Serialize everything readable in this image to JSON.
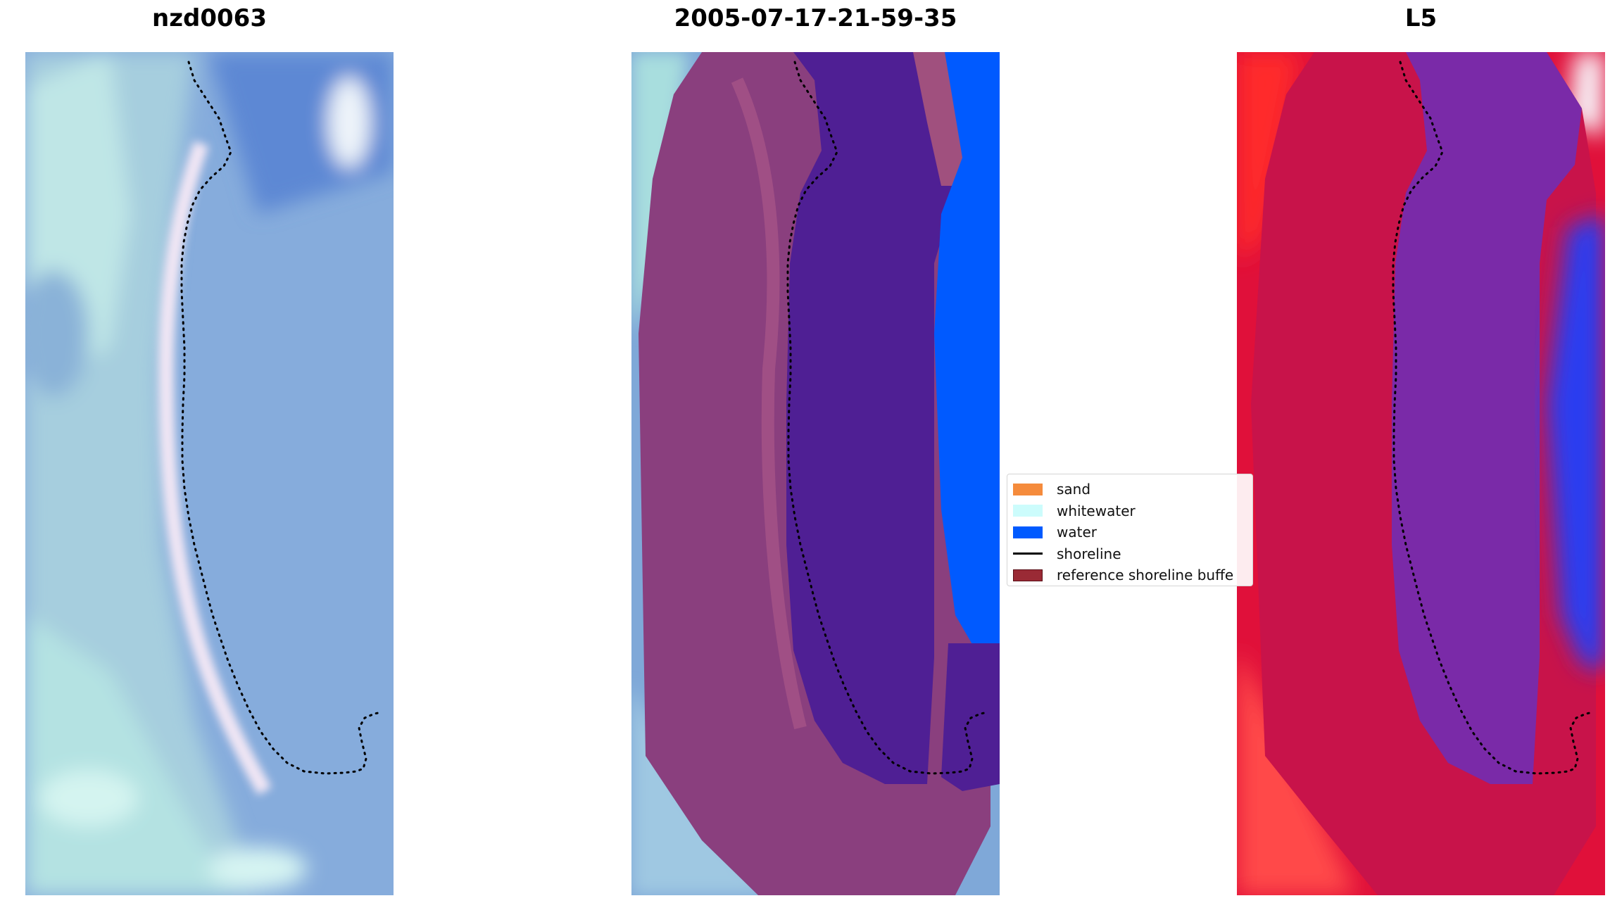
{
  "panels": [
    {
      "title": "nzd0063"
    },
    {
      "title": "2005-07-17-21-59-35"
    },
    {
      "title": "L5"
    }
  ],
  "legend": {
    "items": [
      {
        "label": "sand",
        "color": "#f58b3c",
        "kind": "patch"
      },
      {
        "label": "whitewater",
        "color": "#ccfcfc",
        "kind": "patch"
      },
      {
        "label": "water",
        "color": "#005aff",
        "kind": "patch"
      },
      {
        "label": "shoreline",
        "color": "#000000",
        "kind": "line"
      },
      {
        "label": "reference shoreline buffe",
        "color": "#9a2a35",
        "kind": "patch"
      }
    ]
  },
  "colors": {
    "sky_blue": "#7aa6dc",
    "pale_cyan": "#c4eeee",
    "buffer_purple": "#8a3f7e",
    "inner_indigo": "#4f1f94",
    "water_blue": "#005aff",
    "index_red": "#e0103a",
    "index_blue": "#2b3cf0"
  }
}
